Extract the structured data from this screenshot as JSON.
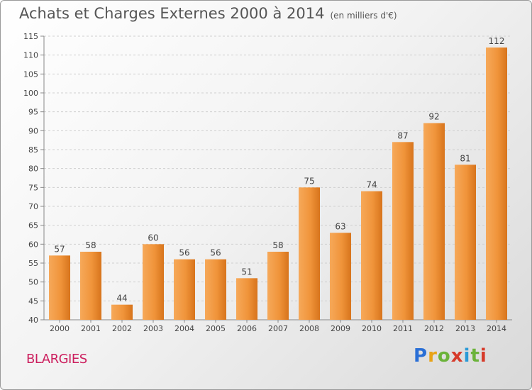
{
  "header": {
    "title": "Achats et Charges Externes 2000 à 2014",
    "unit": "(en milliers d'€)"
  },
  "location": "BLARGIES",
  "brand": {
    "letters": [
      "P",
      "r",
      "o",
      "x",
      "i",
      "t",
      "i"
    ],
    "colors": [
      "#2a6fd6",
      "#e8a317",
      "#6bb33a",
      "#d63a2a",
      "#2a9ad6",
      "#6bb33a",
      "#d63a2a"
    ]
  },
  "chart_data": {
    "type": "bar",
    "title": "Achats et Charges Externes 2000 à 2014",
    "categories": [
      "2000",
      "2001",
      "2002",
      "2003",
      "2004",
      "2005",
      "2006",
      "2007",
      "2008",
      "2009",
      "2010",
      "2011",
      "2012",
      "2013",
      "2014"
    ],
    "values": [
      57,
      58,
      44,
      60,
      56,
      56,
      51,
      58,
      75,
      63,
      74,
      87,
      92,
      81,
      112
    ],
    "ylim": [
      40,
      115
    ],
    "yticks": [
      40,
      45,
      50,
      55,
      60,
      65,
      70,
      75,
      80,
      85,
      90,
      95,
      100,
      105,
      110,
      115
    ],
    "grid": true,
    "bar_color": "#f0943a"
  }
}
